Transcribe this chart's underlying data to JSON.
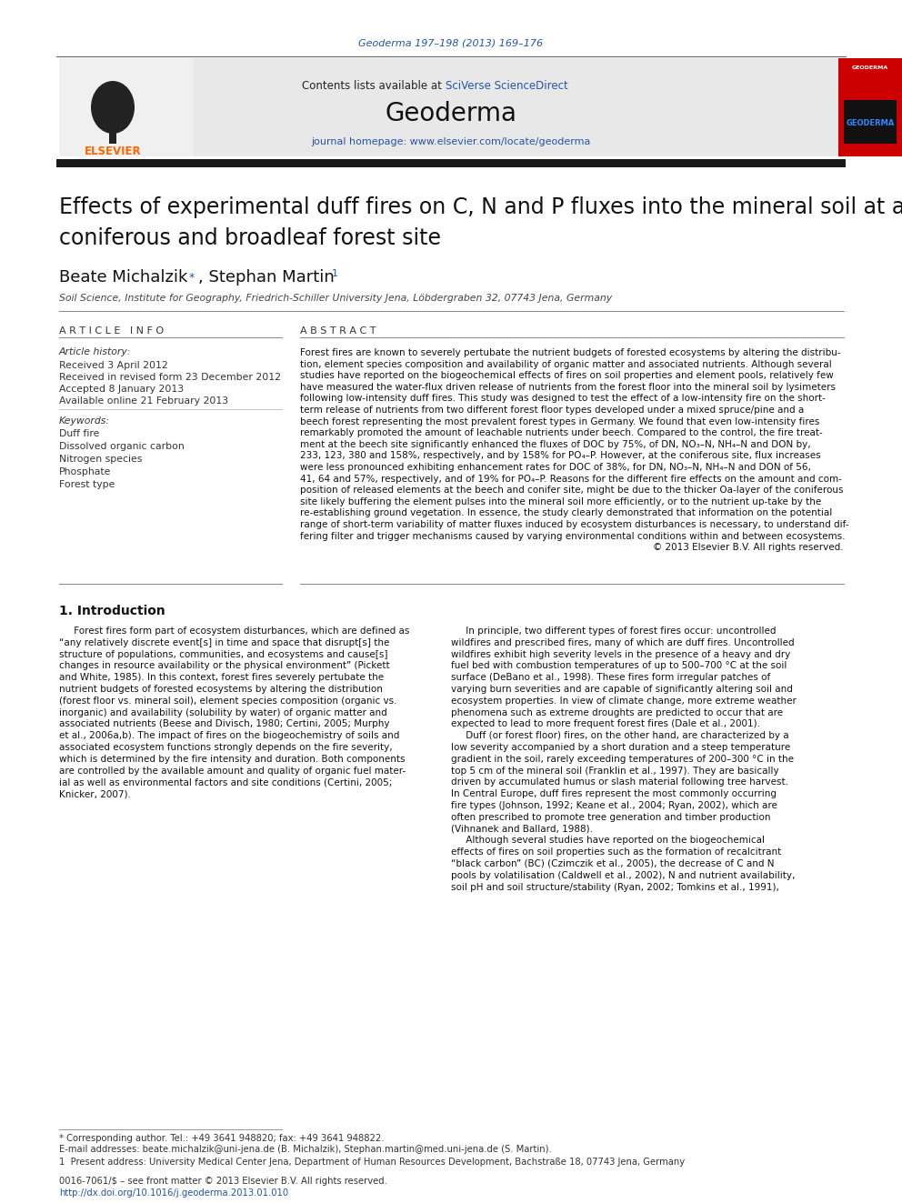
{
  "page_bg": "#ffffff",
  "top_citation": "Geoderma 197–198 (2013) 169–176",
  "top_citation_color": "#2255aa",
  "header_bg": "#e8e8e8",
  "contents_text": "Contents lists available at ",
  "sciverse_text": "SciVerse ScienceDirect",
  "sciverse_color": "#2255aa",
  "journal_name": "Geoderma",
  "journal_url": "journal homepage: www.elsevier.com/locate/geoderma",
  "journal_url_color": "#2255aa",
  "affiliation": "Soil Science, Institute for Geography, Friedrich-Schiller University Jena, Löbdergraben 32, 07743 Jena, Germany",
  "article_info_header": "A R T I C L E   I N F O",
  "abstract_header": "A B S T R A C T",
  "article_history_label": "Article history:",
  "received_text": "Received 3 April 2012",
  "revised_text": "Received in revised form 23 December 2012",
  "accepted_text": "Accepted 8 January 2013",
  "online_text": "Available online 21 February 2013",
  "keywords_label": "Keywords:",
  "keywords": [
    "Duff fire",
    "Dissolved organic carbon",
    "Nitrogen species",
    "Phosphate",
    "Forest type"
  ],
  "intro_header": "1. Introduction",
  "footer_color": "#2255aa",
  "footnote_star": "* Corresponding author. Tel.: +49 3641 948820; fax: +49 3641 948822.",
  "footnote_email_label": "E-mail addresses: ",
  "footnote_email1": "beate.michalzik@uni-jena.de",
  "footnote_email1_color": "#2255aa",
  "footnote_email1_suffix": " (B. Michalzik),",
  "footnote_email2": "Stephan.martin@med.uni-jena.de",
  "footnote_email2_color": "#2255aa",
  "footnote_email2_suffix": " (S. Martin).",
  "footnote_1": "1  Present address: University Medical Center Jena, Department of Human Resources Development, Bachstraße 18, 07743 Jena, Germany",
  "elsevier_logo_color": "#ff6600",
  "geoderma_cover_color": "#cc0000",
  "black_bar_color": "#1a1a1a",
  "separator_line_color": "#888888",
  "link_color": "#2255aa",
  "abstract_lines": [
    "Forest fires are known to severely pertubate the nutrient budgets of forested ecosystems by altering the distribu-",
    "tion, element species composition and availability of organic matter and associated nutrients. Although several",
    "studies have reported on the biogeochemical effects of fires on soil properties and element pools, relatively few",
    "have measured the water-flux driven release of nutrients from the forest floor into the mineral soil by lysimeters",
    "following low-intensity duff fires. This study was designed to test the effect of a low-intensity fire on the short-",
    "term release of nutrients from two different forest floor types developed under a mixed spruce/pine and a",
    "beech forest representing the most prevalent forest types in Germany. We found that even low-intensity fires",
    "remarkably promoted the amount of leachable nutrients under beech. Compared to the control, the fire treat-",
    "ment at the beech site significantly enhanced the fluxes of DOC by 75%, of DN, NO₃–N, NH₄–N and DON by,",
    "233, 123, 380 and 158%, respectively, and by 158% for PO₄–P. However, at the coniferous site, flux increases",
    "were less pronounced exhibiting enhancement rates for DOC of 38%, for DN, NO₃–N, NH₄–N and DON of 56,",
    "41, 64 and 57%, respectively, and of 19% for PO₄–P. Reasons for the different fire effects on the amount and com-",
    "position of released elements at the beech and conifer site, might be due to the thicker Oa-layer of the coniferous",
    "site likely buffering the element pulses into the mineral soil more efficiently, or to the nutrient up-take by the",
    "re-establishing ground vegetation. In essence, the study clearly demonstrated that information on the potential",
    "range of short-term variability of matter fluxes induced by ecosystem disturbances is necessary, to understand dif-",
    "fering filter and trigger mechanisms caused by varying environmental conditions within and between ecosystems.",
    "© 2013 Elsevier B.V. All rights reserved."
  ],
  "intro_left_lines": [
    "     Forest fires form part of ecosystem disturbances, which are defined as",
    "“any relatively discrete event[s] in time and space that disrupt[s] the",
    "structure of populations, communities, and ecosystems and cause[s]",
    "changes in resource availability or the physical environment” (Pickett",
    "and White, 1985). In this context, forest fires severely pertubate the",
    "nutrient budgets of forested ecosystems by altering the distribution",
    "(forest floor vs. mineral soil), element species composition (organic vs.",
    "inorganic) and availability (solubility by water) of organic matter and",
    "associated nutrients (Beese and Divisch, 1980; Certini, 2005; Murphy",
    "et al., 2006a,b). The impact of fires on the biogeochemistry of soils and",
    "associated ecosystem functions strongly depends on the fire severity,",
    "which is determined by the fire intensity and duration. Both components",
    "are controlled by the available amount and quality of organic fuel mater-",
    "ial as well as environmental factors and site conditions (Certini, 2005;",
    "Knicker, 2007)."
  ],
  "intro_right_lines": [
    "     In principle, two different types of forest fires occur: uncontrolled",
    "wildfires and prescribed fires, many of which are duff fires. Uncontrolled",
    "wildfires exhibit high severity levels in the presence of a heavy and dry",
    "fuel bed with combustion temperatures of up to 500–700 °C at the soil",
    "surface (DeBano et al., 1998). These fires form irregular patches of",
    "varying burn severities and are capable of significantly altering soil and",
    "ecosystem properties. In view of climate change, more extreme weather",
    "phenomena such as extreme droughts are predicted to occur that are",
    "expected to lead to more frequent forest fires (Dale et al., 2001).",
    "     Duff (or forest floor) fires, on the other hand, are characterized by a",
    "low severity accompanied by a short duration and a steep temperature",
    "gradient in the soil, rarely exceeding temperatures of 200–300 °C in the",
    "top 5 cm of the mineral soil (Franklin et al., 1997). They are basically",
    "driven by accumulated humus or slash material following tree harvest.",
    "In Central Europe, duff fires represent the most commonly occurring",
    "fire types (Johnson, 1992; Keane et al., 2004; Ryan, 2002), which are",
    "often prescribed to promote tree generation and timber production",
    "(Vihnanek and Ballard, 1988).",
    "     Although several studies have reported on the biogeochemical",
    "effects of fires on soil properties such as the formation of recalcitrant",
    "“black carbon” (BC) (Czimczik et al., 2005), the decrease of C and N",
    "pools by volatilisation (Caldwell et al., 2002), N and nutrient availability,",
    "soil pH and soil structure/stability (Ryan, 2002; Tomkins et al., 1991),"
  ]
}
